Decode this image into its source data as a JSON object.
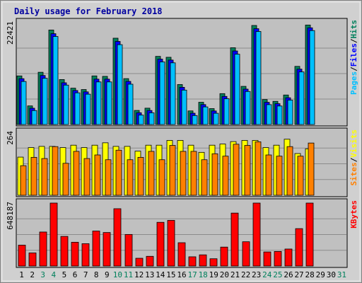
{
  "chart_data": {
    "type": "bar",
    "title": "Daily usage for February 2018",
    "categories": [
      "1",
      "2",
      "3",
      "4",
      "5",
      "6",
      "7",
      "8",
      "9",
      "10",
      "11",
      "12",
      "13",
      "14",
      "15",
      "16",
      "17",
      "18",
      "19",
      "20",
      "21",
      "22",
      "23",
      "24",
      "25",
      "26",
      "27",
      "28",
      "29",
      "30",
      "31"
    ],
    "weekend_days": [
      "3",
      "4",
      "10",
      "11",
      "17",
      "18",
      "24",
      "25",
      "31"
    ],
    "panels": [
      {
        "key": "top",
        "ymax_label": "22421",
        "ylim": [
          0,
          22421
        ],
        "legend": [
          {
            "label": "Pages",
            "color": "#00c0ff"
          },
          {
            "label": "/",
            "color": "#000000"
          },
          {
            "label": "Files",
            "color": "#0000ff"
          },
          {
            "label": "/",
            "color": "#000000"
          },
          {
            "label": "Hits",
            "color": "#00805c"
          }
        ],
        "series": [
          {
            "name": "Hits",
            "color": "#00805c",
            "values": [
              10700,
              4100,
              11500,
              20800,
              9900,
              8000,
              7700,
              10700,
              10600,
              19000,
              10100,
              3100,
              3600,
              15000,
              14800,
              8800,
              3000,
              4900,
              3500,
              6800,
              16900,
              8400,
              21800,
              5500,
              5100,
              6500,
              12800,
              21900,
              0,
              0,
              0
            ]
          },
          {
            "name": "Files",
            "color": "#0000ff",
            "values": [
              10400,
              3900,
              11100,
              20300,
              9500,
              7800,
              7500,
              10300,
              10300,
              18600,
              9800,
              2900,
              3400,
              14700,
              14500,
              8500,
              2800,
              4700,
              3300,
              6500,
              16500,
              8100,
              21400,
              5200,
              4900,
              6200,
              12500,
              21600,
              0,
              0,
              0
            ]
          },
          {
            "name": "Pages",
            "color": "#00c0ff",
            "values": [
              10100,
              3700,
              10800,
              20000,
              9300,
              7600,
              7300,
              10000,
              10000,
              18200,
              9500,
              2700,
              3200,
              14400,
              14200,
              8200,
              2600,
              4500,
              3100,
              6300,
              16100,
              7900,
              21100,
              5000,
              4700,
              6000,
              12200,
              21300,
              0,
              0,
              0
            ]
          }
        ]
      },
      {
        "key": "middle",
        "ymax_label": "264",
        "ylim": [
          0,
          264
        ],
        "legend": [
          {
            "label": "Sites",
            "color": "#ff8000"
          },
          {
            "label": "/",
            "color": "#000000"
          },
          {
            "label": "Visits",
            "color": "#ffff00"
          }
        ],
        "series": [
          {
            "name": "Visits",
            "color": "#ffff00",
            "values": [
              160,
              200,
              205,
              205,
              200,
              210,
              200,
              210,
              220,
              205,
              205,
              185,
              210,
              210,
              230,
              230,
              210,
              180,
              210,
              215,
              225,
              230,
              230,
              200,
              210,
              235,
              175,
              195,
              0,
              0,
              0
            ]
          },
          {
            "name": "Sites",
            "color": "#ff8000",
            "values": [
              130,
              165,
              160,
              210,
              140,
              190,
              160,
              175,
              155,
              195,
              155,
              165,
              190,
              155,
              215,
              190,
              190,
              155,
              180,
              170,
              220,
              215,
              230,
              175,
              170,
              210,
              170,
              225,
              0,
              0,
              0
            ]
          }
        ]
      },
      {
        "key": "bottom",
        "ymax_label": "648187",
        "ylim": [
          0,
          648187
        ],
        "legend": [
          {
            "label": "KBytes",
            "color": "#ff0000"
          }
        ],
        "series": [
          {
            "name": "KBytes",
            "color": "#ff0000",
            "values": [
              215000,
              135000,
              350000,
              648187,
              305000,
              245000,
              230000,
              360000,
              345000,
              590000,
              325000,
              80000,
              100000,
              450000,
              470000,
              240000,
              95000,
              115000,
              75000,
              195000,
              545000,
              250000,
              648187,
              145000,
              150000,
              175000,
              385000,
              648187,
              0,
              0,
              0
            ]
          }
        ]
      }
    ]
  }
}
